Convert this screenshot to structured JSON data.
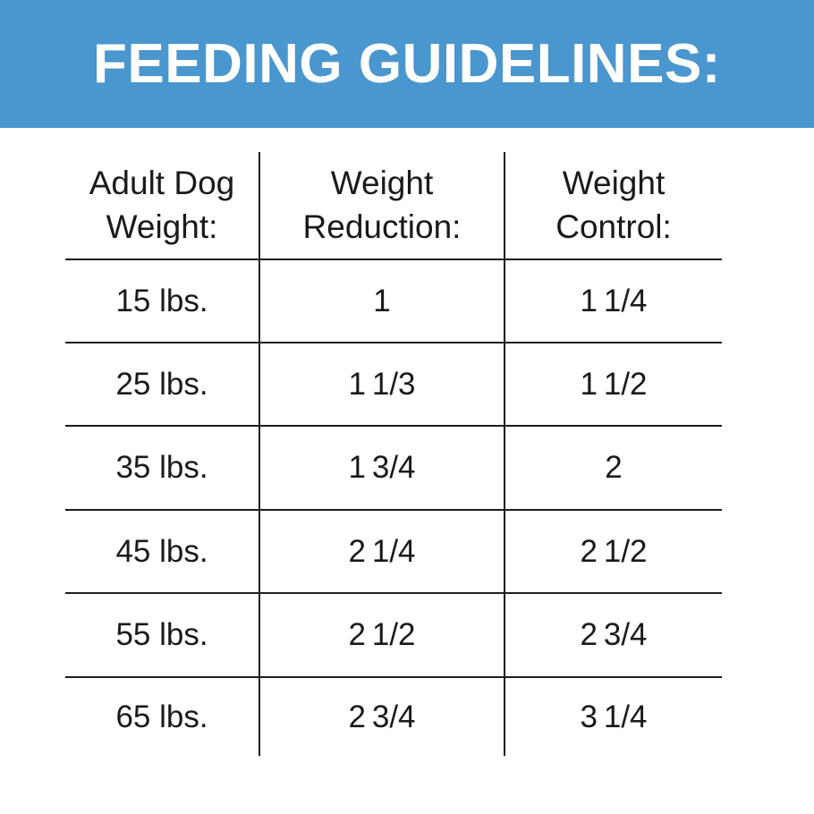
{
  "theme": {
    "accent": "#4a96ce",
    "banner_text": "#ffffff",
    "line_color": "#1d1d1d",
    "text_color": "#1a1a1a"
  },
  "banner": {
    "title": "FEEDING GUIDELINES:"
  },
  "table": {
    "columns": [
      {
        "label": "Adult Dog\nWeight:"
      },
      {
        "label": "Weight\nReduction:"
      },
      {
        "label": "Weight\nControl:"
      }
    ],
    "rows": [
      {
        "weight": "15 lbs.",
        "reduction": "1",
        "control": "1 1/4"
      },
      {
        "weight": "25 lbs.",
        "reduction": "1 1/3",
        "control": "1 1/2"
      },
      {
        "weight": "35 lbs.",
        "reduction": "1 3/4",
        "control": "2"
      },
      {
        "weight": "45 lbs.",
        "reduction": "2 1/4",
        "control": "2 1/2"
      },
      {
        "weight": "55 lbs.",
        "reduction": "2 1/2",
        "control": "2 3/4"
      },
      {
        "weight": "65 lbs.",
        "reduction": "2 3/4",
        "control": "3 1/4"
      }
    ]
  },
  "chart_data": {
    "type": "table",
    "title": "FEEDING GUIDELINES:",
    "columns": [
      "Adult Dog Weight:",
      "Weight Reduction:",
      "Weight Control:"
    ],
    "rows": [
      [
        "15 lbs.",
        "1",
        "1 1/4"
      ],
      [
        "25 lbs.",
        "1 1/3",
        "1 1/2"
      ],
      [
        "35 lbs.",
        "1 3/4",
        "2"
      ],
      [
        "45 lbs.",
        "2 1/4",
        "2 1/2"
      ],
      [
        "55 lbs.",
        "2 1/2",
        "2 3/4"
      ],
      [
        "65 lbs.",
        "2 3/4",
        "3 1/4"
      ]
    ]
  }
}
